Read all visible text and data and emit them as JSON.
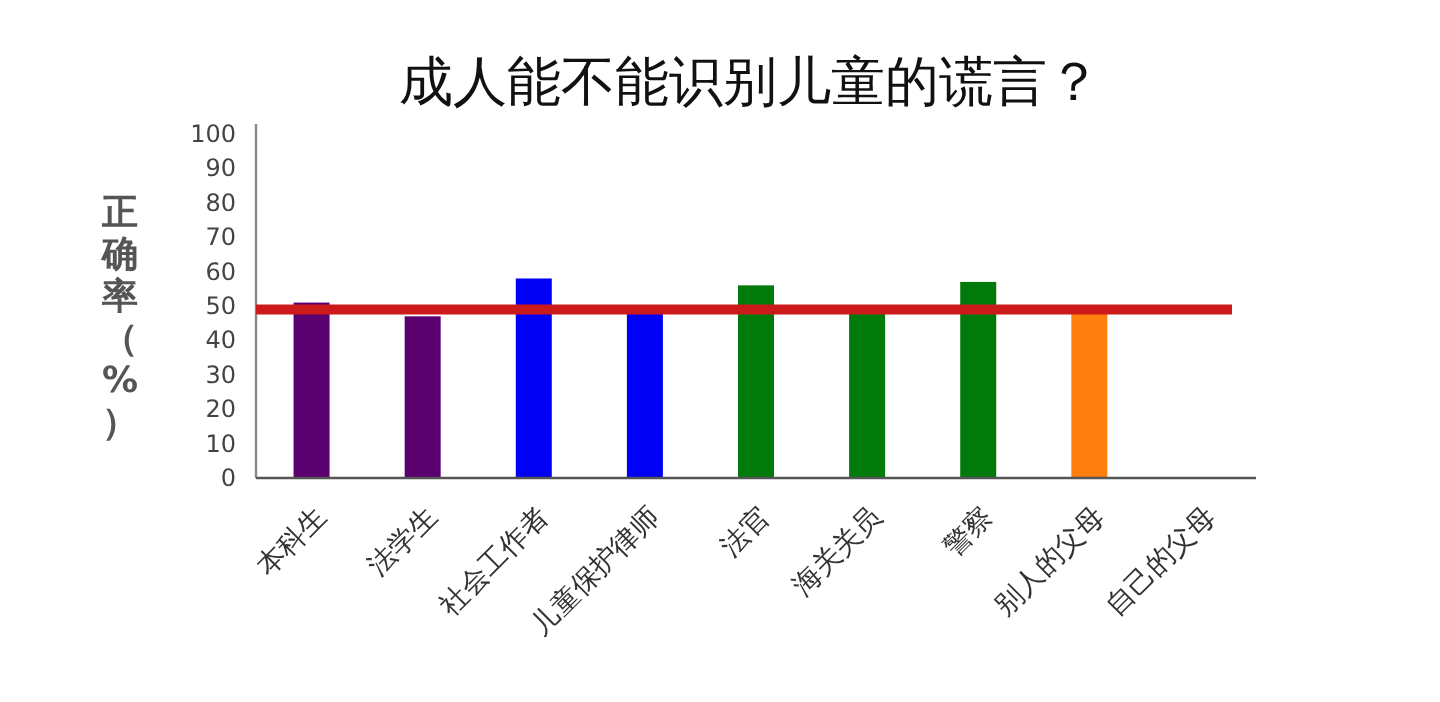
{
  "chart_data": {
    "type": "bar",
    "title": "成人能不能识别儿童的谎言？",
    "ylabel": "正确率（%）",
    "categories": [
      "本科生",
      "法学生",
      "社会工作者",
      "儿童保护律师",
      "法官",
      "海关关员",
      "警察",
      "别人的父母",
      "自己的父母"
    ],
    "values": [
      51,
      47,
      58,
      48,
      56,
      48,
      57,
      48,
      null
    ],
    "colors": [
      "#5b006f",
      "#5b006f",
      "#0000f5",
      "#0000f5",
      "#007a0a",
      "#007a0a",
      "#007a0a",
      "#ff7f0e",
      null
    ],
    "ylim": [
      0,
      100
    ],
    "yticks": [
      0,
      10,
      20,
      30,
      40,
      50,
      60,
      70,
      80,
      90,
      100
    ],
    "ref_lines": [
      {
        "axis": "y",
        "value": 49,
        "label": null,
        "color": "#cc1a1a"
      }
    ],
    "grid": false
  }
}
